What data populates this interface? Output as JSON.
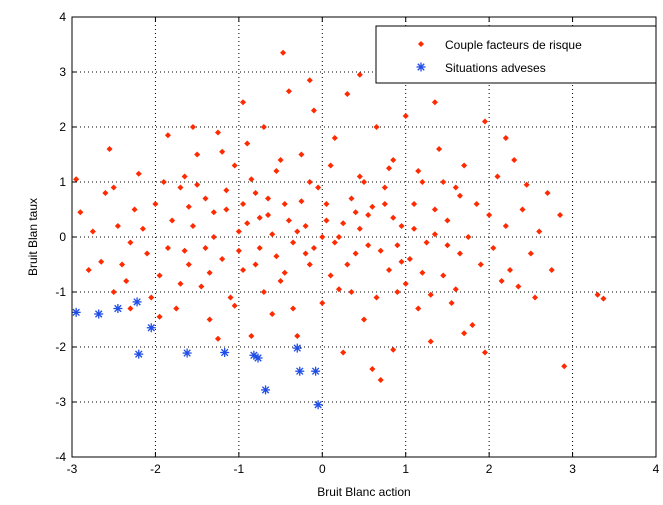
{
  "chart_data": {
    "type": "scatter",
    "title": "",
    "xlabel": "Bruit Blanc action",
    "ylabel": "Bruit Blan taux",
    "xlim": [
      -3,
      4
    ],
    "ylim": [
      -4,
      4
    ],
    "xticks": [
      -3,
      -2,
      -1,
      0,
      1,
      2,
      3,
      4
    ],
    "yticks": [
      -4,
      -3,
      -2,
      -1,
      0,
      1,
      2,
      3,
      4
    ],
    "xtick_labels": [
      "-3",
      "-2",
      "-1",
      "0",
      "1",
      "2",
      "3",
      "4"
    ],
    "ytick_labels": [
      "-4",
      "-3",
      "-2",
      "-1",
      "0",
      "1",
      "2",
      "3",
      "4"
    ],
    "grid": true,
    "grid_style": "dotted",
    "legend_position": "top-right",
    "series": [
      {
        "name": "Couple facteurs de risque",
        "marker": "diamond",
        "color": "#ff2a00",
        "points": [
          [
            -2.95,
            1.05
          ],
          [
            -2.9,
            0.45
          ],
          [
            -2.6,
            0.8
          ],
          [
            -2.55,
            1.6
          ],
          [
            -2.5,
            0.9
          ],
          [
            -2.45,
            0.2
          ],
          [
            -2.4,
            -0.5
          ],
          [
            -2.35,
            -0.8
          ],
          [
            -2.3,
            -0.1
          ],
          [
            -2.25,
            0.5
          ],
          [
            -2.2,
            1.15
          ],
          [
            -2.15,
            0.15
          ],
          [
            -2.1,
            -0.3
          ],
          [
            -2.05,
            -1.1
          ],
          [
            -2.0,
            0.6
          ],
          [
            -1.95,
            -0.7
          ],
          [
            -1.9,
            1.0
          ],
          [
            -1.85,
            -0.2
          ],
          [
            -1.8,
            0.3
          ],
          [
            -1.75,
            -1.3
          ],
          [
            -1.7,
            0.9
          ],
          [
            -1.65,
            1.1
          ],
          [
            -1.6,
            -0.5
          ],
          [
            -1.55,
            0.2
          ],
          [
            -1.5,
            1.5
          ],
          [
            -1.45,
            -0.9
          ],
          [
            -1.4,
            0.7
          ],
          [
            -1.35,
            -1.5
          ],
          [
            -1.3,
            0.0
          ],
          [
            -1.25,
            1.9
          ],
          [
            -1.2,
            -0.4
          ],
          [
            -1.15,
            0.5
          ],
          [
            -1.1,
            -1.1
          ],
          [
            -1.05,
            1.3
          ],
          [
            -1.0,
            0.1
          ],
          [
            -0.95,
            -0.6
          ],
          [
            -0.9,
            1.7
          ],
          [
            -0.85,
            -1.8
          ],
          [
            -0.8,
            0.8
          ],
          [
            -0.75,
            -0.2
          ],
          [
            -0.7,
            2.0
          ],
          [
            -0.65,
            0.4
          ],
          [
            -0.6,
            -1.4
          ],
          [
            -0.55,
            1.2
          ],
          [
            -0.5,
            -0.8
          ],
          [
            -0.47,
            3.35
          ],
          [
            -0.45,
            0.6
          ],
          [
            -0.4,
            2.65
          ],
          [
            -0.35,
            -0.1
          ],
          [
            -0.3,
            -1.8
          ],
          [
            -0.25,
            1.5
          ],
          [
            -0.2,
            0.2
          ],
          [
            -0.15,
            -0.5
          ],
          [
            -0.1,
            2.3
          ],
          [
            -0.05,
            0.9
          ],
          [
            0.0,
            -1.2
          ],
          [
            0.05,
            0.3
          ],
          [
            0.1,
            -0.7
          ],
          [
            0.15,
            1.8
          ],
          [
            0.2,
            0.0
          ],
          [
            0.25,
            -2.1
          ],
          [
            0.3,
            2.6
          ],
          [
            0.35,
            0.7
          ],
          [
            0.4,
            -0.3
          ],
          [
            0.45,
            1.1
          ],
          [
            0.5,
            -1.5
          ],
          [
            0.55,
            0.4
          ],
          [
            0.6,
            -2.4
          ],
          [
            0.65,
            2.0
          ],
          [
            0.7,
            -2.6
          ],
          [
            0.75,
            0.9
          ],
          [
            0.8,
            -0.6
          ],
          [
            0.85,
            1.4
          ],
          [
            0.9,
            -1.0
          ],
          [
            0.95,
            0.2
          ],
          [
            1.0,
            2.2
          ],
          [
            1.05,
            -0.4
          ],
          [
            1.1,
            0.6
          ],
          [
            1.15,
            -1.3
          ],
          [
            1.2,
            1.0
          ],
          [
            1.25,
            -0.1
          ],
          [
            1.3,
            -1.9
          ],
          [
            1.35,
            0.5
          ],
          [
            1.4,
            1.6
          ],
          [
            1.45,
            -0.7
          ],
          [
            1.5,
            0.3
          ],
          [
            1.55,
            -1.2
          ],
          [
            1.6,
            0.9
          ],
          [
            1.65,
            -0.3
          ],
          [
            1.7,
            1.3
          ],
          [
            1.75,
            0.0
          ],
          [
            1.8,
            -1.6
          ],
          [
            1.85,
            0.6
          ],
          [
            1.9,
            -0.5
          ],
          [
            1.95,
            -2.1
          ],
          [
            2.0,
            0.4
          ],
          [
            2.05,
            -0.2
          ],
          [
            2.1,
            1.1
          ],
          [
            2.15,
            -0.8
          ],
          [
            2.2,
            0.2
          ],
          [
            2.25,
            -0.6
          ],
          [
            2.3,
            1.4
          ],
          [
            2.35,
            -0.9
          ],
          [
            2.4,
            0.5
          ],
          [
            2.5,
            -0.3
          ],
          [
            2.6,
            0.1
          ],
          [
            2.75,
            -0.6
          ],
          [
            2.85,
            0.4
          ],
          [
            2.9,
            -2.35
          ],
          [
            3.3,
            -1.05
          ],
          [
            3.37,
            -1.12
          ],
          [
            -0.3,
            0.1
          ],
          [
            -0.2,
            -0.3
          ],
          [
            0.05,
            0.6
          ],
          [
            0.15,
            -0.1
          ],
          [
            0.25,
            0.25
          ],
          [
            -0.1,
            -0.2
          ],
          [
            0.0,
            0.0
          ],
          [
            0.3,
            -0.5
          ],
          [
            -0.4,
            0.3
          ],
          [
            0.45,
            0.15
          ],
          [
            -0.55,
            -0.35
          ],
          [
            0.6,
            0.55
          ],
          [
            -0.65,
            0.7
          ],
          [
            0.7,
            -0.25
          ],
          [
            -0.8,
            -0.5
          ],
          [
            0.85,
            0.35
          ],
          [
            -0.9,
            0.25
          ],
          [
            0.95,
            -0.45
          ],
          [
            -1.0,
            -0.25
          ],
          [
            1.1,
            0.15
          ],
          [
            -1.15,
            0.85
          ],
          [
            1.2,
            -0.65
          ],
          [
            -1.3,
            0.45
          ],
          [
            1.35,
            0.05
          ],
          [
            -1.4,
            -0.2
          ],
          [
            1.5,
            -0.15
          ],
          [
            -1.6,
            0.55
          ],
          [
            1.65,
            0.75
          ],
          [
            -1.7,
            -0.85
          ],
          [
            0.1,
            1.3
          ],
          [
            -0.15,
            1.0
          ],
          [
            0.35,
            -1.0
          ],
          [
            -0.35,
            -1.3
          ],
          [
            0.5,
            1.0
          ],
          [
            -0.5,
            1.4
          ],
          [
            0.65,
            -1.1
          ],
          [
            -0.7,
            -1.0
          ],
          [
            0.8,
            1.25
          ],
          [
            -0.85,
            1.05
          ],
          [
            1.0,
            -0.85
          ],
          [
            -1.05,
            -1.25
          ],
          [
            1.15,
            1.2
          ],
          [
            -1.2,
            1.55
          ],
          [
            1.3,
            -1.05
          ],
          [
            -1.35,
            -0.65
          ],
          [
            1.45,
            1.0
          ],
          [
            -1.5,
            0.95
          ],
          [
            1.6,
            -0.95
          ],
          [
            -1.65,
            -0.25
          ],
          [
            0.2,
            -0.95
          ],
          [
            -0.25,
            0.65
          ],
          [
            0.4,
            0.45
          ],
          [
            -0.45,
            -0.65
          ],
          [
            0.55,
            -0.15
          ],
          [
            -0.6,
            0.05
          ],
          [
            0.75,
            0.6
          ],
          [
            -0.75,
            0.35
          ],
          [
            0.9,
            -0.15
          ],
          [
            -0.95,
            0.6
          ],
          [
            -2.65,
            -0.45
          ],
          [
            -2.75,
            0.1
          ],
          [
            -2.5,
            -1.0
          ],
          [
            -2.3,
            -1.3
          ],
          [
            2.45,
            0.95
          ],
          [
            2.55,
            -1.1
          ],
          [
            2.7,
            0.8
          ],
          [
            2.2,
            1.8
          ],
          [
            1.95,
            2.1
          ],
          [
            1.7,
            -1.75
          ],
          [
            -1.85,
            1.85
          ],
          [
            -1.95,
            -1.45
          ],
          [
            -1.25,
            -1.85
          ],
          [
            -0.95,
            2.45
          ],
          [
            0.45,
            2.95
          ],
          [
            -0.15,
            2.85
          ],
          [
            0.85,
            -2.05
          ],
          [
            1.35,
            2.45
          ],
          [
            -1.55,
            2.0
          ],
          [
            -2.8,
            -0.6
          ]
        ]
      },
      {
        "name": "Situations adveses",
        "marker": "asterisk",
        "color": "#1f4de6",
        "points": [
          [
            -2.95,
            -1.37
          ],
          [
            -2.68,
            -1.4
          ],
          [
            -2.45,
            -1.3
          ],
          [
            -2.22,
            -1.18
          ],
          [
            -2.2,
            -2.13
          ],
          [
            -2.05,
            -1.65
          ],
          [
            -1.62,
            -2.11
          ],
          [
            -1.17,
            -2.1
          ],
          [
            -0.82,
            -2.15
          ],
          [
            -0.77,
            -2.2
          ],
          [
            -0.68,
            -2.78
          ],
          [
            -0.3,
            -2.02
          ],
          [
            -0.27,
            -2.44
          ],
          [
            -0.08,
            -2.44
          ],
          [
            -0.05,
            -3.05
          ]
        ]
      }
    ]
  }
}
